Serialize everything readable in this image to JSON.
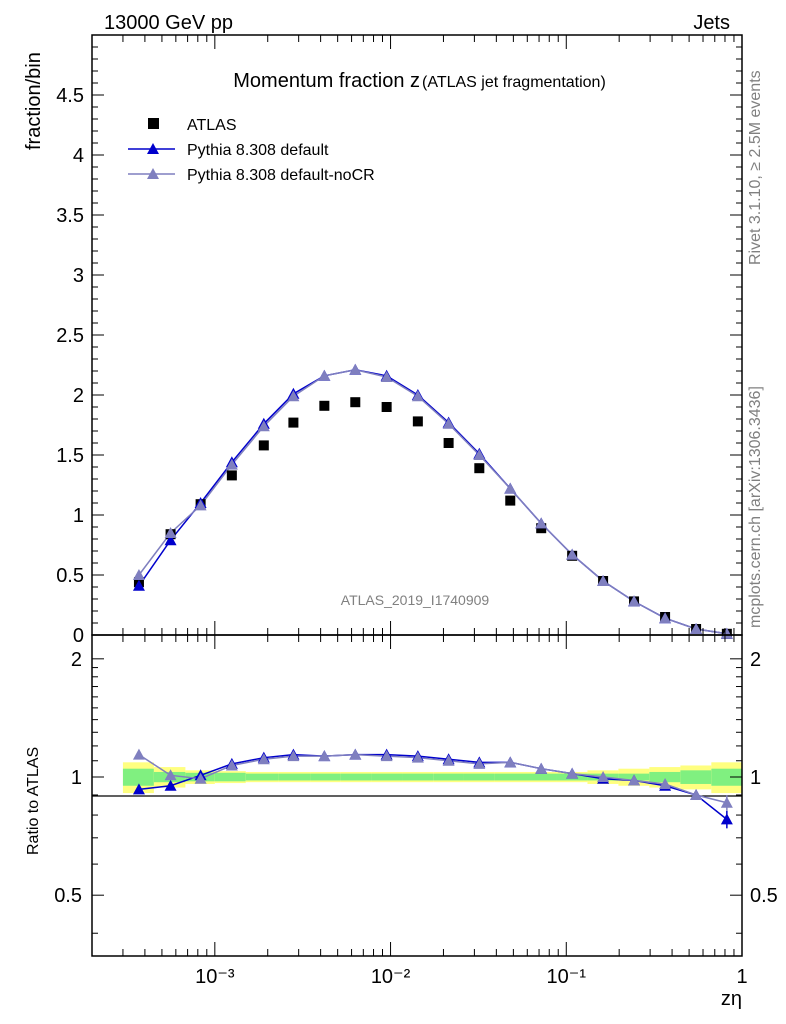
{
  "header": {
    "energy_label": "13000 GeV pp",
    "process_label": "Jets",
    "rivet_label": "Rivet 3.1.10, ≥ 2.5M events",
    "mcplots_label": "mcplots.cern.ch [arXiv:1306.3436]",
    "analysis_label": "ATLAS_2019_I1740909"
  },
  "chart_data": [
    {
      "type": "scatter",
      "title": "Momentum fraction z",
      "subtitle": "(ATLAS jet fragmentation)",
      "xlabel": "zη",
      "ylabel": "fraction/bin",
      "xscale": "log",
      "xlim": [
        0.0002,
        1
      ],
      "ylim": [
        0,
        5
      ],
      "yticks": [
        "0",
        "0.5",
        "1",
        "1.5",
        "2",
        "2.5",
        "3",
        "3.5",
        "4",
        "4.5"
      ],
      "xticks": [
        "10⁻³",
        "10⁻²",
        "10⁻¹",
        "1"
      ],
      "legend_position": "top-left",
      "x": [
        0.00037,
        0.00056,
        0.00083,
        0.00125,
        0.0019,
        0.0028,
        0.0042,
        0.0063,
        0.0095,
        0.0143,
        0.0214,
        0.032,
        0.048,
        0.072,
        0.108,
        0.162,
        0.243,
        0.365,
        0.548,
        0.82
      ],
      "series": [
        {
          "name": "ATLAS",
          "color": "#000000",
          "marker": "square",
          "values": [
            0.44,
            0.84,
            1.09,
            1.33,
            1.58,
            1.77,
            1.91,
            1.94,
            1.9,
            1.78,
            1.6,
            1.39,
            1.12,
            0.89,
            0.66,
            0.45,
            0.28,
            0.15,
            0.05,
            0.01
          ]
        },
        {
          "name": "Pythia 8.308 default",
          "color": "#0000cc",
          "marker": "triangle",
          "values": [
            0.41,
            0.79,
            1.1,
            1.44,
            1.76,
            2.01,
            2.16,
            2.21,
            2.16,
            2.0,
            1.77,
            1.51,
            1.22,
            0.93,
            0.67,
            0.45,
            0.28,
            0.14,
            0.05,
            0.01
          ]
        },
        {
          "name": "Pythia 8.308 default-noCR",
          "color": "#7f7fbf",
          "marker": "triangle",
          "values": [
            0.5,
            0.85,
            1.08,
            1.42,
            1.74,
            1.99,
            2.16,
            2.21,
            2.15,
            1.99,
            1.76,
            1.5,
            1.22,
            0.93,
            0.67,
            0.45,
            0.28,
            0.14,
            0.05,
            0.01
          ]
        }
      ]
    },
    {
      "type": "line",
      "ylabel": "Ratio to ATLAS",
      "xlabel": "zη",
      "xscale": "log",
      "xlim": [
        0.0002,
        1
      ],
      "ylim": [
        0.35,
        2.3
      ],
      "yscale": "log",
      "yticks": [
        "0.5",
        "1",
        "2"
      ],
      "reference_line": 1,
      "x": [
        0.00037,
        0.00056,
        0.00083,
        0.00125,
        0.0019,
        0.0028,
        0.0042,
        0.0063,
        0.0095,
        0.0143,
        0.0214,
        0.032,
        0.048,
        0.072,
        0.108,
        0.162,
        0.243,
        0.365,
        0.548,
        0.82
      ],
      "bands": {
        "bin_edges": [
          0.0003,
          0.00045,
          0.00068,
          0.001,
          0.0015,
          0.0023,
          0.0035,
          0.0052,
          0.0078,
          0.0117,
          0.0176,
          0.026,
          0.039,
          0.059,
          0.088,
          0.132,
          0.198,
          0.297,
          0.446,
          0.669,
          1.0
        ],
        "green_halfwidth": [
          0.05,
          0.03,
          0.025,
          0.025,
          0.02,
          0.02,
          0.02,
          0.02,
          0.02,
          0.02,
          0.02,
          0.02,
          0.02,
          0.02,
          0.02,
          0.02,
          0.02,
          0.03,
          0.04,
          0.05
        ],
        "yellow_halfwidth": [
          0.09,
          0.06,
          0.04,
          0.035,
          0.03,
          0.03,
          0.03,
          0.03,
          0.03,
          0.03,
          0.03,
          0.03,
          0.03,
          0.03,
          0.03,
          0.04,
          0.05,
          0.06,
          0.07,
          0.09
        ],
        "green_color": "#80f080",
        "yellow_color": "#ffff80"
      },
      "series": [
        {
          "name": "Pythia 8.308 default",
          "color": "#0000cc",
          "values": [
            0.93,
            0.95,
            1.01,
            1.08,
            1.12,
            1.14,
            1.13,
            1.14,
            1.14,
            1.13,
            1.11,
            1.09,
            1.09,
            1.05,
            1.02,
            0.99,
            0.98,
            0.95,
            0.9,
            0.78
          ],
          "errors": [
            0,
            0,
            0,
            0,
            0,
            0,
            0,
            0,
            0,
            0,
            0,
            0,
            0,
            0,
            0,
            0,
            0,
            0,
            0,
            0.04
          ]
        },
        {
          "name": "Pythia 8.308 default-noCR",
          "color": "#7f7fbf",
          "values": [
            1.14,
            1.01,
            0.99,
            1.07,
            1.11,
            1.13,
            1.13,
            1.14,
            1.13,
            1.12,
            1.1,
            1.08,
            1.09,
            1.05,
            1.02,
            1.0,
            0.98,
            0.96,
            0.9,
            0.86
          ],
          "errors": [
            0,
            0,
            0,
            0,
            0,
            0,
            0,
            0,
            0,
            0,
            0,
            0,
            0,
            0,
            0,
            0,
            0,
            0,
            0,
            0.04
          ]
        }
      ]
    }
  ]
}
